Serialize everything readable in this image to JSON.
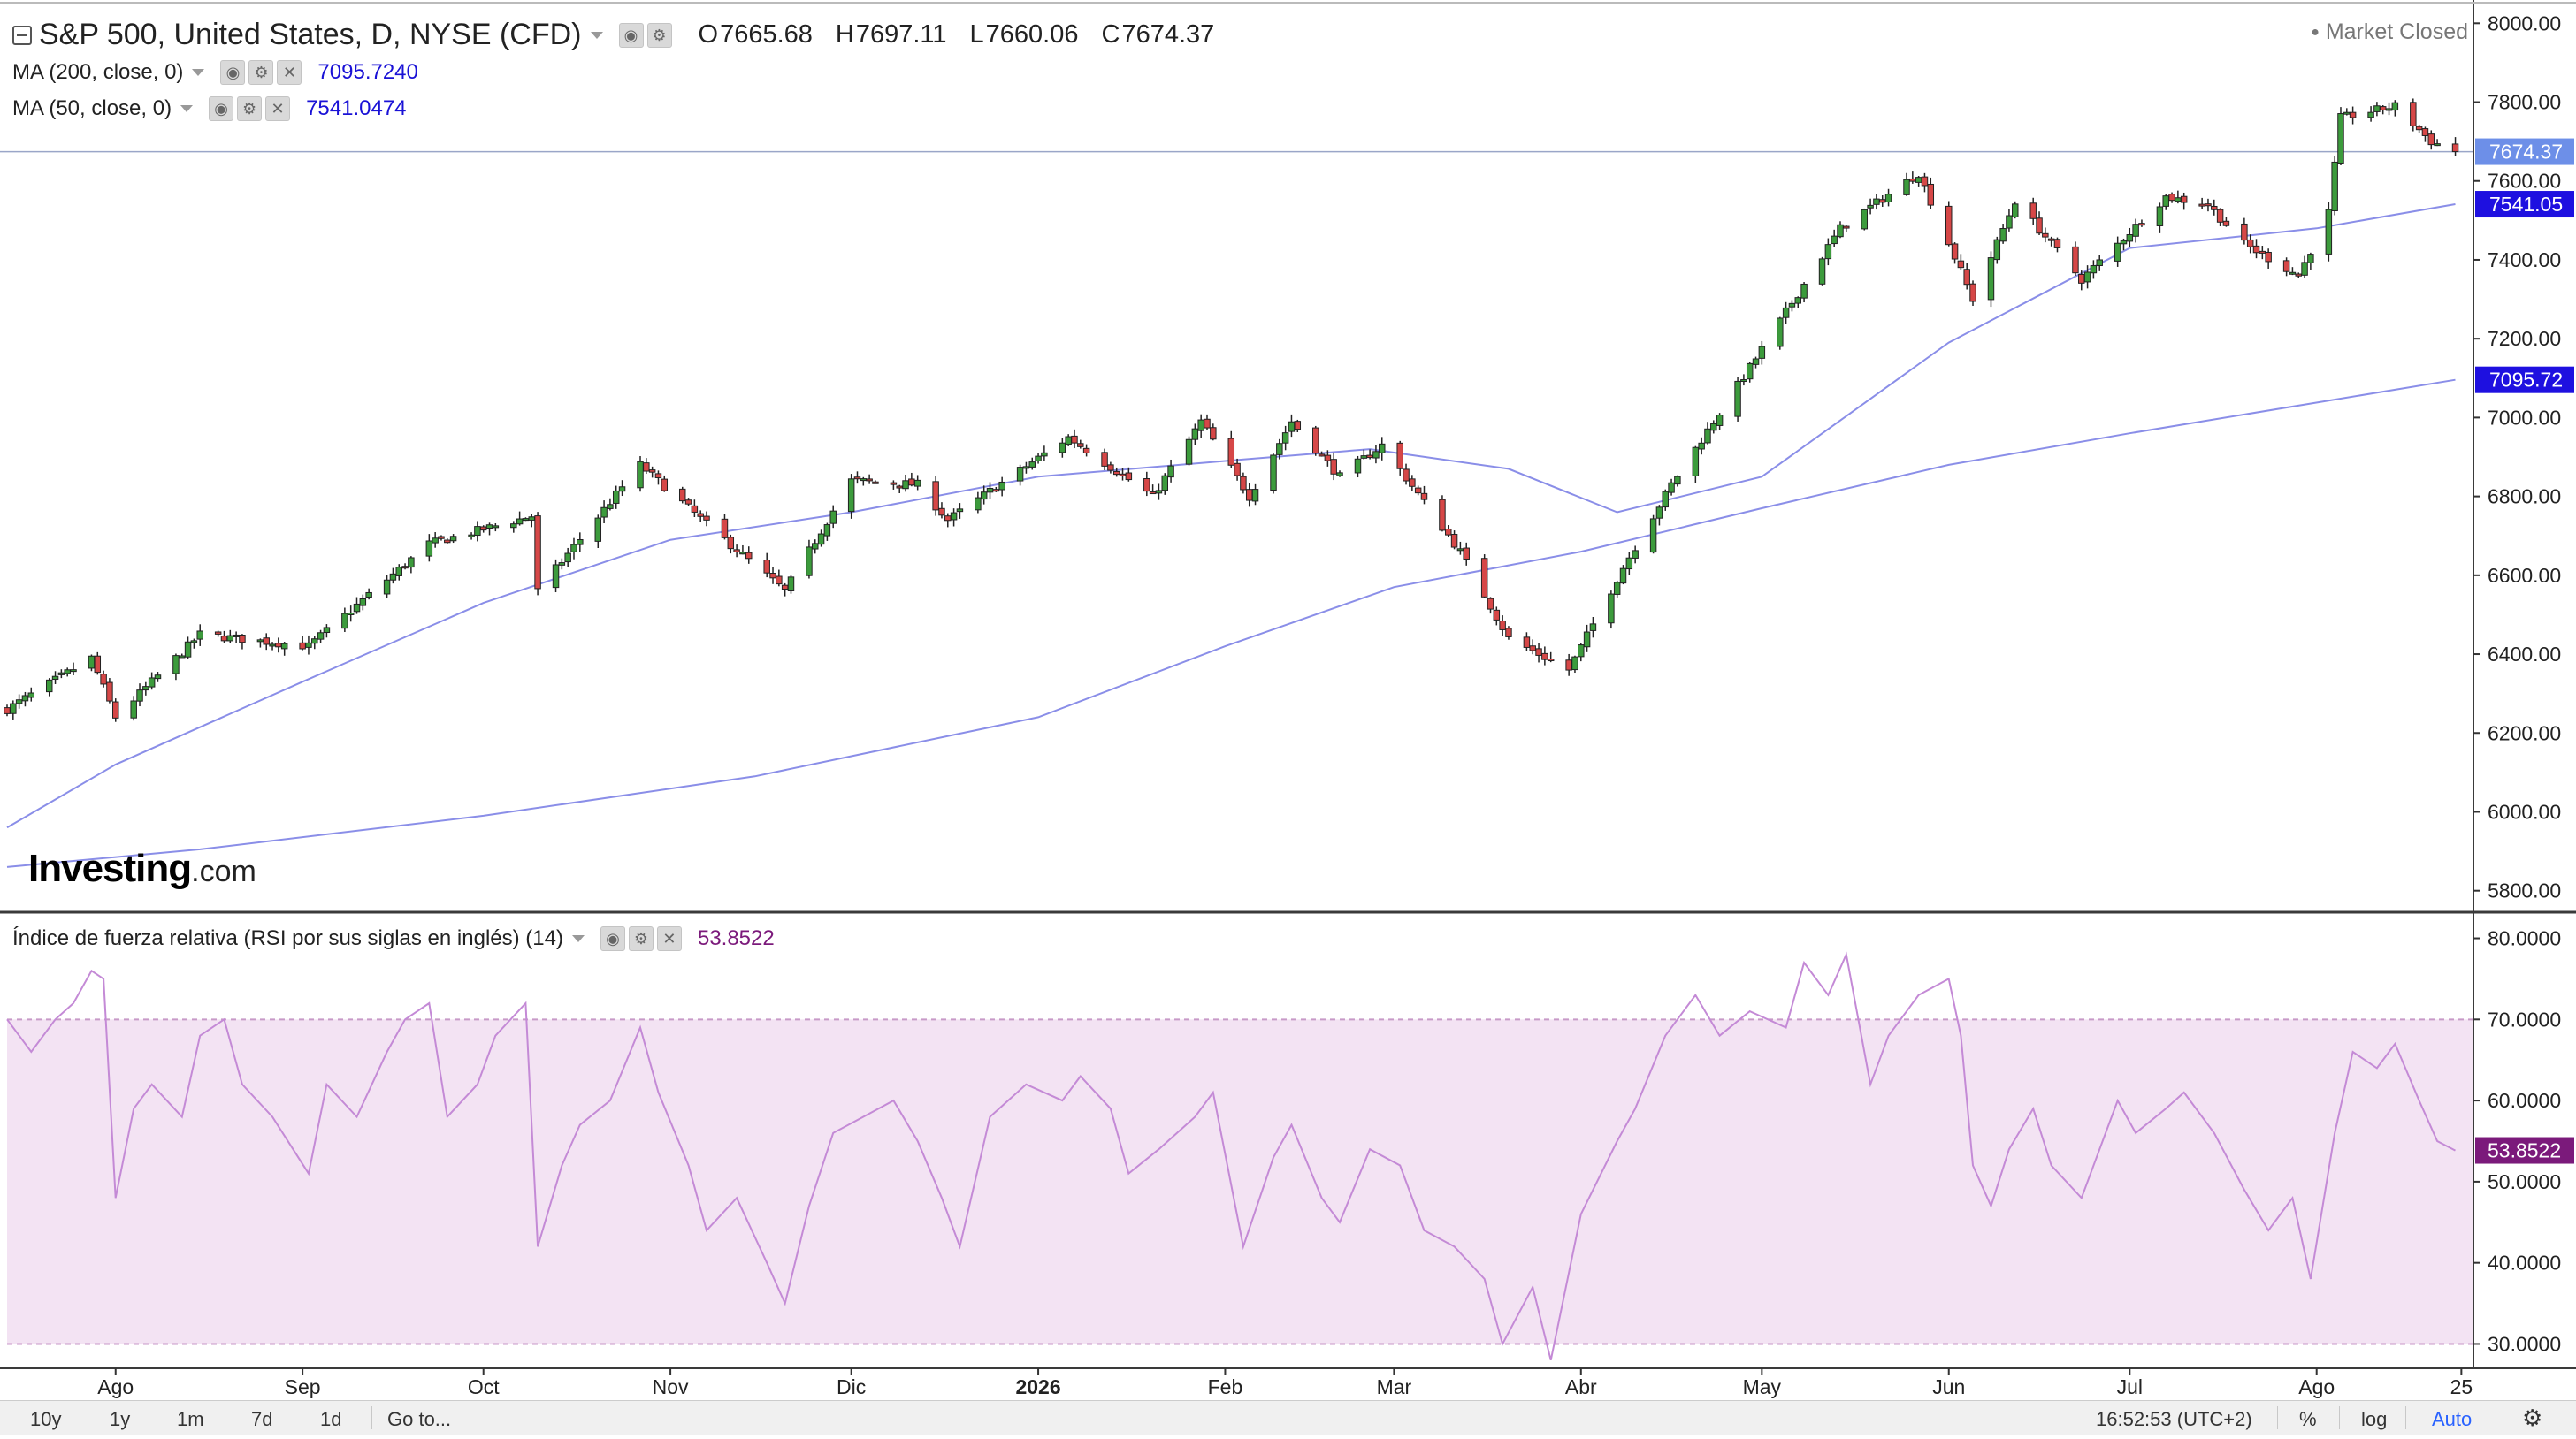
{
  "header": {
    "title": "S&P 500, United States, D, NYSE (CFD)",
    "ohlc": [
      {
        "label": "O",
        "value": "7665.68"
      },
      {
        "label": "H",
        "value": "7697.11"
      },
      {
        "label": "L",
        "value": "7660.06"
      },
      {
        "label": "C",
        "value": "7674.37"
      }
    ],
    "market_status": "Market Closed"
  },
  "indicators": [
    {
      "label": "MA (200, close, 0)",
      "value": "7095.7240",
      "color": "#1a12d6"
    },
    {
      "label": "MA (50, close, 0)",
      "value": "7541.0474",
      "color": "#1a12d6"
    }
  ],
  "rsi_legend": {
    "label": "Índice de fuerza relativa (RSI por sus siglas en inglés) (14)",
    "value": "53.8522",
    "color": "#7b1a7b"
  },
  "logo": {
    "brand": "Investing",
    "tld": ".com"
  },
  "price_axis": {
    "ticks": [
      "8000.00",
      "7800.00",
      "7600.00",
      "7400.00",
      "7200.00",
      "7000.00",
      "6800.00",
      "6600.00",
      "6400.00",
      "6200.00",
      "6000.00",
      "5800.00"
    ],
    "tags": [
      {
        "name": "last-price-tag",
        "text": "7674.37",
        "value": 7674.37,
        "color": "#6d8fe8"
      },
      {
        "name": "ma50-price-tag",
        "text": "7541.05",
        "value": 7541.05,
        "color": "#1e10e0"
      },
      {
        "name": "ma200-price-tag",
        "text": "7095.72",
        "value": 7095.72,
        "color": "#1e10e0"
      }
    ]
  },
  "rsi_axis": {
    "ticks": [
      "80.0000",
      "70.0000",
      "60.0000",
      "50.0000",
      "40.0000",
      "30.0000"
    ],
    "tag": {
      "text": "53.8522",
      "value": 53.8522,
      "color": "#7b1a7b"
    }
  },
  "time_axis": {
    "labels": [
      {
        "text": "Ago",
        "date": "2025-08-01"
      },
      {
        "text": "Sep",
        "date": "2025-09-01"
      },
      {
        "text": "Oct",
        "date": "2025-10-01"
      },
      {
        "text": "Nov",
        "date": "2025-11-01"
      },
      {
        "text": "Dic",
        "date": "2025-12-01"
      },
      {
        "text": "2026",
        "date": "2026-01-01",
        "bold": true
      },
      {
        "text": "Feb",
        "date": "2026-02-01"
      },
      {
        "text": "Mar",
        "date": "2026-03-01"
      },
      {
        "text": "Abr",
        "date": "2026-04-01"
      },
      {
        "text": "May",
        "date": "2026-05-01"
      },
      {
        "text": "Jun",
        "date": "2026-06-01"
      },
      {
        "text": "Jul",
        "date": "2026-07-01"
      },
      {
        "text": "Ago",
        "date": "2026-08-01"
      },
      {
        "text": "25",
        "date": "2026-08-25"
      }
    ]
  },
  "bottom_bar": {
    "ranges": [
      "10y",
      "1y",
      "1m",
      "7d",
      "1d"
    ],
    "goto": "Go to...",
    "time": "16:52:53 (UTC+2)",
    "percent": "%",
    "log": "log",
    "auto": "Auto"
  },
  "colors": {
    "up": "#3c9b3c",
    "down": "#d64747",
    "ma": "#8a8ee8",
    "rsi": "#c48ad6",
    "rsi_band": "#f3e3f3",
    "grid_border": "#3a3a3a"
  },
  "chart_data": [
    {
      "type": "candlestick",
      "title": "S&P 500, United States, D, NYSE (CFD)",
      "ylim": [
        5750,
        8050
      ],
      "x_range": [
        "2025-07-14",
        "2026-08-27"
      ],
      "anchors": [
        {
          "date": "2025-07-14",
          "close": 6260
        },
        {
          "date": "2025-07-28",
          "close": 6390
        },
        {
          "date": "2025-08-01",
          "close": 6240
        },
        {
          "date": "2025-08-15",
          "close": 6450
        },
        {
          "date": "2025-09-02",
          "close": 6420
        },
        {
          "date": "2025-09-22",
          "close": 6680
        },
        {
          "date": "2025-10-09",
          "close": 6750
        },
        {
          "date": "2025-10-10",
          "close": 6560
        },
        {
          "date": "2025-10-27",
          "close": 6880
        },
        {
          "date": "2025-11-07",
          "close": 6730
        },
        {
          "date": "2025-11-20",
          "close": 6560
        },
        {
          "date": "2025-12-01",
          "close": 6840
        },
        {
          "date": "2025-12-12",
          "close": 6830
        },
        {
          "date": "2025-12-17",
          "close": 6740
        },
        {
          "date": "2026-01-06",
          "close": 6950
        },
        {
          "date": "2026-01-20",
          "close": 6800
        },
        {
          "date": "2026-01-28",
          "close": 6990
        },
        {
          "date": "2026-02-05",
          "close": 6800
        },
        {
          "date": "2026-02-12",
          "close": 6990
        },
        {
          "date": "2026-02-20",
          "close": 6850
        },
        {
          "date": "2026-02-27",
          "close": 6930
        },
        {
          "date": "2026-03-12",
          "close": 6660
        },
        {
          "date": "2026-03-20",
          "close": 6440
        },
        {
          "date": "2026-03-30",
          "close": 6360
        },
        {
          "date": "2026-04-08",
          "close": 6620
        },
        {
          "date": "2026-04-16",
          "close": 6830
        },
        {
          "date": "2026-04-30",
          "close": 7150
        },
        {
          "date": "2026-05-14",
          "close": 7480
        },
        {
          "date": "2026-05-27",
          "close": 7620
        },
        {
          "date": "2026-06-05",
          "close": 7300
        },
        {
          "date": "2026-06-12",
          "close": 7550
        },
        {
          "date": "2026-06-23",
          "close": 7350
        },
        {
          "date": "2026-07-07",
          "close": 7560
        },
        {
          "date": "2026-07-14",
          "close": 7540
        },
        {
          "date": "2026-07-20",
          "close": 7440
        },
        {
          "date": "2026-07-29",
          "close": 7360
        },
        {
          "date": "2026-08-03",
          "close": 7520
        },
        {
          "date": "2026-08-05",
          "close": 7760
        },
        {
          "date": "2026-08-14",
          "close": 7790
        },
        {
          "date": "2026-08-20",
          "close": 7700
        },
        {
          "date": "2026-08-24",
          "close": 7674.37
        }
      ],
      "ma200": [
        {
          "date": "2025-07-14",
          "value": 5860
        },
        {
          "date": "2025-08-15",
          "value": 5905
        },
        {
          "date": "2025-10-01",
          "value": 5990
        },
        {
          "date": "2025-11-15",
          "value": 6090
        },
        {
          "date": "2026-01-01",
          "value": 6240
        },
        {
          "date": "2026-02-01",
          "value": 6420
        },
        {
          "date": "2026-03-01",
          "value": 6570
        },
        {
          "date": "2026-04-01",
          "value": 6660
        },
        {
          "date": "2026-05-01",
          "value": 6770
        },
        {
          "date": "2026-06-01",
          "value": 6880
        },
        {
          "date": "2026-07-01",
          "value": 6960
        },
        {
          "date": "2026-08-24",
          "value": 7095.72
        }
      ],
      "ma50": [
        {
          "date": "2025-07-14",
          "value": 5960
        },
        {
          "date": "2025-08-01",
          "value": 6120
        },
        {
          "date": "2025-09-01",
          "value": 6330
        },
        {
          "date": "2025-10-01",
          "value": 6530
        },
        {
          "date": "2025-11-01",
          "value": 6690
        },
        {
          "date": "2025-12-01",
          "value": 6760
        },
        {
          "date": "2026-01-01",
          "value": 6850
        },
        {
          "date": "2026-02-01",
          "value": 6890
        },
        {
          "date": "2026-02-25",
          "value": 6920
        },
        {
          "date": "2026-03-20",
          "value": 6870
        },
        {
          "date": "2026-04-07",
          "value": 6760
        },
        {
          "date": "2026-05-01",
          "value": 6850
        },
        {
          "date": "2026-06-01",
          "value": 7190
        },
        {
          "date": "2026-07-01",
          "value": 7430
        },
        {
          "date": "2026-08-01",
          "value": 7480
        },
        {
          "date": "2026-08-24",
          "value": 7541.05
        }
      ]
    },
    {
      "type": "line",
      "title": "Índice de fuerza relativa (RSI por sus siglas en inglés) (14)",
      "ylim": [
        27,
        83
      ],
      "bands": [
        30,
        70
      ],
      "x_range": [
        "2025-07-14",
        "2026-08-27"
      ],
      "points": [
        [
          "2025-07-14",
          70
        ],
        [
          "2025-07-18",
          66
        ],
        [
          "2025-07-22",
          70
        ],
        [
          "2025-07-25",
          72
        ],
        [
          "2025-07-28",
          76
        ],
        [
          "2025-07-30",
          75
        ],
        [
          "2025-08-01",
          48
        ],
        [
          "2025-08-04",
          59
        ],
        [
          "2025-08-07",
          62
        ],
        [
          "2025-08-12",
          58
        ],
        [
          "2025-08-15",
          68
        ],
        [
          "2025-08-19",
          70
        ],
        [
          "2025-08-22",
          62
        ],
        [
          "2025-08-27",
          58
        ],
        [
          "2025-09-02",
          51
        ],
        [
          "2025-09-05",
          62
        ],
        [
          "2025-09-10",
          58
        ],
        [
          "2025-09-15",
          66
        ],
        [
          "2025-09-18",
          70
        ],
        [
          "2025-09-22",
          72
        ],
        [
          "2025-09-25",
          58
        ],
        [
          "2025-09-30",
          62
        ],
        [
          "2025-10-03",
          68
        ],
        [
          "2025-10-08",
          72
        ],
        [
          "2025-10-10",
          42
        ],
        [
          "2025-10-14",
          52
        ],
        [
          "2025-10-17",
          57
        ],
        [
          "2025-10-22",
          60
        ],
        [
          "2025-10-27",
          69
        ],
        [
          "2025-10-30",
          61
        ],
        [
          "2025-11-04",
          52
        ],
        [
          "2025-11-07",
          44
        ],
        [
          "2025-11-12",
          48
        ],
        [
          "2025-11-17",
          40
        ],
        [
          "2025-11-20",
          35
        ],
        [
          "2025-11-24",
          47
        ],
        [
          "2025-11-28",
          56
        ],
        [
          "2025-12-03",
          58
        ],
        [
          "2025-12-08",
          60
        ],
        [
          "2025-12-12",
          55
        ],
        [
          "2025-12-16",
          48
        ],
        [
          "2025-12-19",
          42
        ],
        [
          "2025-12-24",
          58
        ],
        [
          "2025-12-30",
          62
        ],
        [
          "2026-01-05",
          60
        ],
        [
          "2026-01-08",
          63
        ],
        [
          "2026-01-13",
          59
        ],
        [
          "2026-01-16",
          51
        ],
        [
          "2026-01-21",
          54
        ],
        [
          "2026-01-27",
          58
        ],
        [
          "2026-01-30",
          61
        ],
        [
          "2026-02-04",
          42
        ],
        [
          "2026-02-09",
          53
        ],
        [
          "2026-02-12",
          57
        ],
        [
          "2026-02-17",
          48
        ],
        [
          "2026-02-20",
          45
        ],
        [
          "2026-02-25",
          54
        ],
        [
          "2026-03-02",
          52
        ],
        [
          "2026-03-06",
          44
        ],
        [
          "2026-03-11",
          42
        ],
        [
          "2026-03-16",
          38
        ],
        [
          "2026-03-19",
          30
        ],
        [
          "2026-03-24",
          37
        ],
        [
          "2026-03-27",
          28
        ],
        [
          "2026-04-01",
          46
        ],
        [
          "2026-04-07",
          55
        ],
        [
          "2026-04-10",
          59
        ],
        [
          "2026-04-15",
          68
        ],
        [
          "2026-04-20",
          73
        ],
        [
          "2026-04-24",
          68
        ],
        [
          "2026-04-29",
          71
        ],
        [
          "2026-05-05",
          69
        ],
        [
          "2026-05-08",
          77
        ],
        [
          "2026-05-12",
          73
        ],
        [
          "2026-05-15",
          78
        ],
        [
          "2026-05-19",
          62
        ],
        [
          "2026-05-22",
          68
        ],
        [
          "2026-05-27",
          73
        ],
        [
          "2026-06-01",
          75
        ],
        [
          "2026-06-03",
          68
        ],
        [
          "2026-06-05",
          52
        ],
        [
          "2026-06-08",
          47
        ],
        [
          "2026-06-11",
          54
        ],
        [
          "2026-06-15",
          59
        ],
        [
          "2026-06-18",
          52
        ],
        [
          "2026-06-23",
          48
        ],
        [
          "2026-06-29",
          60
        ],
        [
          "2026-07-02",
          56
        ],
        [
          "2026-07-07",
          59
        ],
        [
          "2026-07-10",
          61
        ],
        [
          "2026-07-15",
          56
        ],
        [
          "2026-07-20",
          49
        ],
        [
          "2026-07-24",
          44
        ],
        [
          "2026-07-28",
          48
        ],
        [
          "2026-07-31",
          38
        ],
        [
          "2026-08-04",
          56
        ],
        [
          "2026-08-07",
          66
        ],
        [
          "2026-08-11",
          64
        ],
        [
          "2026-08-14",
          67
        ],
        [
          "2026-08-18",
          60
        ],
        [
          "2026-08-21",
          55
        ],
        [
          "2026-08-24",
          53.85
        ]
      ]
    }
  ]
}
